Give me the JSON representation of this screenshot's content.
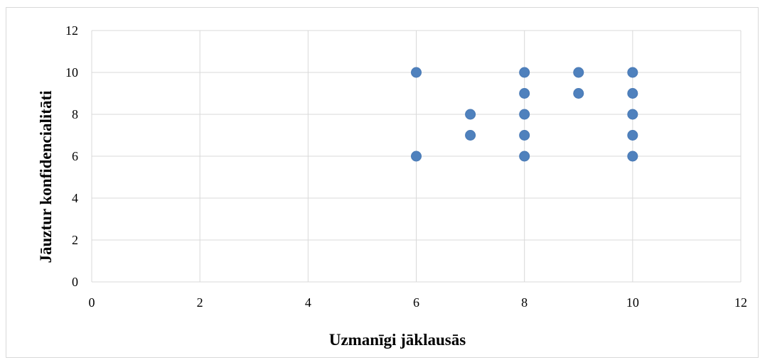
{
  "chart_data": {
    "type": "scatter",
    "title": "",
    "xlabel": "Uzmanīgi jāklausās",
    "ylabel": "Jāuztur konfidencialitāti",
    "xlim": [
      0,
      12
    ],
    "ylim": [
      0,
      12
    ],
    "xticks": [
      "0",
      "2",
      "4",
      "6",
      "8",
      "10",
      "12"
    ],
    "yticks": [
      "0",
      "2",
      "4",
      "6",
      "8",
      "10",
      "12"
    ],
    "grid": true,
    "legend": "none",
    "series": [
      {
        "color": "#4f81bd",
        "points": [
          {
            "x": 6,
            "y": 10
          },
          {
            "x": 6,
            "y": 6
          },
          {
            "x": 7,
            "y": 8
          },
          {
            "x": 7,
            "y": 7
          },
          {
            "x": 8,
            "y": 10
          },
          {
            "x": 8,
            "y": 9
          },
          {
            "x": 8,
            "y": 8
          },
          {
            "x": 8,
            "y": 7
          },
          {
            "x": 8,
            "y": 6
          },
          {
            "x": 9,
            "y": 10
          },
          {
            "x": 9,
            "y": 9
          },
          {
            "x": 10,
            "y": 10
          },
          {
            "x": 10,
            "y": 9
          },
          {
            "x": 10,
            "y": 8
          },
          {
            "x": 10,
            "y": 7
          },
          {
            "x": 10,
            "y": 6
          }
        ]
      }
    ]
  }
}
